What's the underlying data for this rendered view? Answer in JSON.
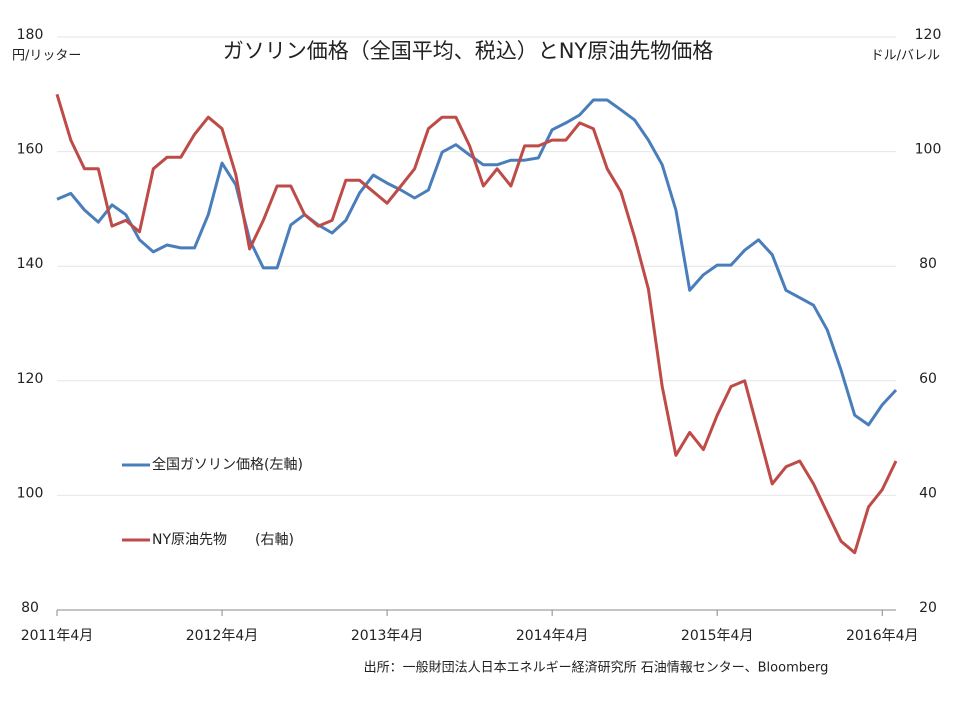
{
  "chart_data": {
    "type": "line",
    "title": "ガソリン価格（全国平均、税込）とNY原油先物価格",
    "y_label": "円/リッター",
    "y2_label": "ドル/バレル",
    "source": "出所：一般財団法人日本エネルギー経済研究所 石油情報センター、Bloomberg",
    "x": [
      "2011-04",
      "2011-05",
      "2011-06",
      "2011-07",
      "2011-08",
      "2011-09",
      "2011-10",
      "2011-11",
      "2011-12",
      "2012-01",
      "2012-02",
      "2012-03",
      "2012-04",
      "2012-05",
      "2012-06",
      "2012-07",
      "2012-08",
      "2012-09",
      "2012-10",
      "2012-11",
      "2012-12",
      "2013-01",
      "2013-02",
      "2013-03",
      "2013-04",
      "2013-05",
      "2013-06",
      "2013-07",
      "2013-08",
      "2013-09",
      "2013-10",
      "2013-11",
      "2013-12",
      "2014-01",
      "2014-02",
      "2014-03",
      "2014-04",
      "2014-05",
      "2014-06",
      "2014-07",
      "2014-08",
      "2014-09",
      "2014-10",
      "2014-11",
      "2014-12",
      "2015-01",
      "2015-02",
      "2015-03",
      "2015-04",
      "2015-05",
      "2015-06",
      "2015-07",
      "2015-08",
      "2015-09",
      "2015-10",
      "2015-11",
      "2015-12",
      "2016-01",
      "2016-02",
      "2016-03",
      "2016-04",
      "2016-05"
    ],
    "xlim": [
      "2011-04",
      "2016-05"
    ],
    "xticks": [
      {
        "value": "2011-04",
        "label": "2011年4月"
      },
      {
        "value": "2012-04",
        "label": "2012年4月"
      },
      {
        "value": "2013-04",
        "label": "2013年4月"
      },
      {
        "value": "2014-04",
        "label": "2014年4月"
      },
      {
        "value": "2015-04",
        "label": "2015年4月"
      },
      {
        "value": "2016-04",
        "label": "2016年4月"
      }
    ],
    "ylim": [
      80,
      180
    ],
    "yticks": [
      80,
      100,
      120,
      140,
      160,
      180
    ],
    "y2lim": [
      20,
      120
    ],
    "y2ticks": [
      20,
      40,
      60,
      80,
      100,
      120
    ],
    "grid": true,
    "legend": "left",
    "series": [
      {
        "name": "全国ガソリン価格(左軸)",
        "color": "#4a7ebb",
        "values": [
          151.7,
          152.7,
          149.8,
          147.7,
          150.7,
          149,
          144.6,
          142.5,
          143.7,
          143.2,
          143.2,
          149,
          158,
          154.2,
          144.6,
          139.7,
          139.7,
          147.2,
          149,
          147.2,
          145.8,
          148,
          152.8,
          155.9,
          154.5,
          153.3,
          151.9,
          153.3,
          159.9,
          161.2,
          159.4,
          157.7,
          157.7,
          158.5,
          158.5,
          158.9,
          163.8,
          165,
          166.4,
          169,
          169,
          167.3,
          165.5,
          162,
          157.7,
          149.8,
          135.8,
          138.5,
          140.2,
          140.2,
          142.8,
          144.6,
          142,
          135.8,
          134.5,
          133.2,
          128.9,
          121.9,
          114,
          112.3,
          115.8,
          118.4
        ]
      },
      {
        "name": "NY原油先物　　(右軸)",
        "color": "#be4b48",
        "axis": "y2",
        "values": [
          110,
          102,
          97,
          97,
          87,
          88,
          86,
          97,
          99,
          99,
          103,
          106,
          104,
          96,
          83,
          88,
          94,
          94,
          89,
          87,
          88,
          95,
          95,
          93,
          91,
          94,
          97,
          104,
          106,
          106,
          101,
          94,
          97,
          94,
          101,
          101,
          102,
          102,
          105,
          104,
          97,
          93,
          85,
          76,
          59,
          47,
          51,
          48,
          54,
          59,
          60,
          51,
          42,
          45,
          46,
          42,
          37,
          32,
          30,
          38,
          41,
          46
        ]
      }
    ]
  }
}
